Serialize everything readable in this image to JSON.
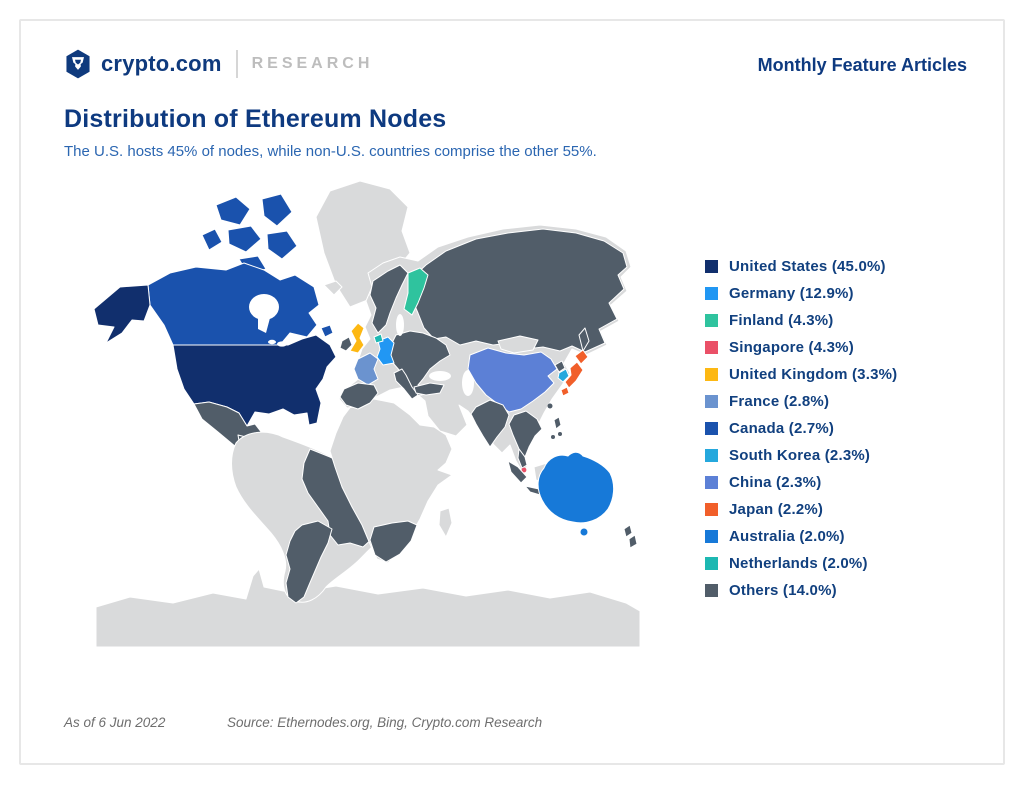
{
  "header": {
    "brand_name": "crypto.com",
    "brand_sub": "RESEARCH",
    "right_label": "Monthly Feature Articles"
  },
  "article": {
    "title": "Distribution of Ethereum Nodes",
    "subtitle": "The U.S. hosts 45% of nodes, while non-U.S. countries comprise the other 55%."
  },
  "footer": {
    "as_of": "As of 6 Jun 2022",
    "source": "Source: Ethernodes.org, Bing, Crypto.com Research"
  },
  "colors": {
    "navy_text": "#0e3a80",
    "subtitle_blue": "#2b66b1",
    "research_gray": "#bdbdbd",
    "footer_gray": "#6e6e6e",
    "card_border": "#e7e7e7"
  },
  "chart_data": {
    "type": "choropleth_world_map",
    "title": "Distribution of Ethereum Nodes",
    "value_unit": "% of Ethereum nodes",
    "as_of": "6 Jun 2022",
    "legend_position": "right",
    "no_data_color": "#d9dadb",
    "series": [
      {
        "name": "United States",
        "value": 45.0,
        "color": "#112f6d"
      },
      {
        "name": "Germany",
        "value": 12.9,
        "color": "#2197f3"
      },
      {
        "name": "Finland",
        "value": 4.3,
        "color": "#2fc39e"
      },
      {
        "name": "Singapore",
        "value": 4.3,
        "color": "#ea5067"
      },
      {
        "name": "United Kingdom",
        "value": 3.3,
        "color": "#fdb813"
      },
      {
        "name": "France",
        "value": 2.8,
        "color": "#6b93cf"
      },
      {
        "name": "Canada",
        "value": 2.7,
        "color": "#1a52ad"
      },
      {
        "name": "South Korea",
        "value": 2.3,
        "color": "#25a8dd"
      },
      {
        "name": "China",
        "value": 2.3,
        "color": "#5c80d6"
      },
      {
        "name": "Japan",
        "value": 2.2,
        "color": "#f15f2a"
      },
      {
        "name": "Australia",
        "value": 2.0,
        "color": "#1779d8"
      },
      {
        "name": "Netherlands",
        "value": 2.0,
        "color": "#1db8b2"
      },
      {
        "name": "Others",
        "value": 14.0,
        "color": "#515d69"
      }
    ]
  }
}
